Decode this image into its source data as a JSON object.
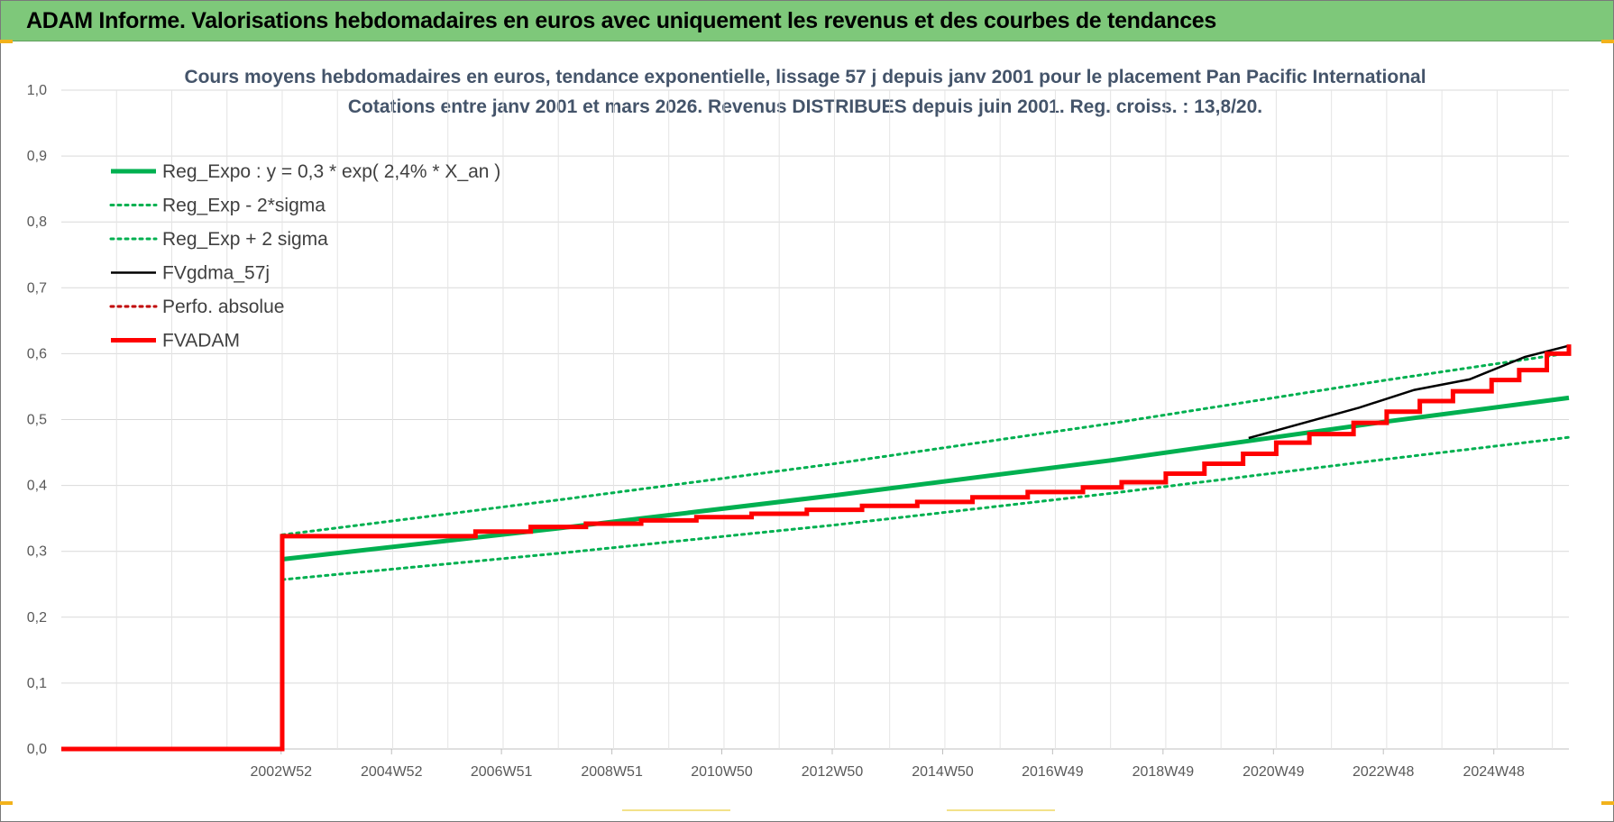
{
  "banner": {
    "title": "ADAM Informe. Valorisations hebdomadaires en euros avec uniquement les revenus et des courbes de tendances"
  },
  "colors": {
    "banner_bg": "#7ec87a",
    "reg_expo": "#00b050",
    "fvgdma": "#000000",
    "fvadam": "#ff0000",
    "perfo": "#c00000"
  },
  "chart_data": {
    "type": "line",
    "title_lines": [
      "Cours moyens hebdomadaires en euros, tendance exponentielle, lissage 57 j depuis janv 2001  pour le placement Pan Pacific International",
      "Cotations entre janv 2001 et mars 2026. Revenus DISTRIBUES depuis juin 2001. Reg. croiss. : 13,8/20."
    ],
    "ylim": [
      0,
      1.0
    ],
    "xlim": [
      1999,
      2026.3
    ],
    "grid": true,
    "legend_position": "top-left",
    "y_tick_labels": [
      "0,0",
      "0,1",
      "0,2",
      "0,3",
      "0,4",
      "0,5",
      "0,6",
      "0,7",
      "0,8",
      "0,9",
      "1,0"
    ],
    "x_tick_labels": [
      "2002W52",
      "2004W52",
      "2006W51",
      "2008W51",
      "2010W50",
      "2012W50",
      "2014W50",
      "2016W49",
      "2018W49",
      "2020W49",
      "2022W48",
      "2024W48"
    ],
    "x_tick_positions": [
      2002.98,
      2004.98,
      2006.97,
      2008.97,
      2010.96,
      2012.96,
      2014.96,
      2016.95,
      2018.95,
      2020.95,
      2022.94,
      2024.94
    ],
    "series": [
      {
        "name": "Reg_Expo : y = 0,3 * exp( 2,4% *  X_an )",
        "style": "solid-thick",
        "color": "#00b050",
        "x": [
          2003.0,
          2008.0,
          2013.0,
          2018.0,
          2023.0,
          2026.3
        ],
        "y": [
          0.288,
          0.335,
          0.385,
          0.438,
          0.497,
          0.533
        ]
      },
      {
        "name": "Reg_Exp - 2*sigma",
        "style": "dotted",
        "color": "#00b050",
        "x": [
          2003.0,
          2008.0,
          2013.0,
          2018.0,
          2023.0,
          2026.3
        ],
        "y": [
          0.257,
          0.297,
          0.34,
          0.388,
          0.44,
          0.473
        ]
      },
      {
        "name": "Reg_Exp + 2 sigma",
        "style": "dotted",
        "color": "#00b050",
        "x": [
          2003.0,
          2008.0,
          2013.0,
          2018.0,
          2023.0,
          2026.3
        ],
        "y": [
          0.325,
          0.378,
          0.433,
          0.494,
          0.56,
          0.601
        ]
      },
      {
        "name": "FVgdma_57j",
        "style": "solid",
        "color": "#000000",
        "x": [
          2020.5,
          2021.5,
          2022.5,
          2023.5,
          2024.5,
          2025.5,
          2026.3
        ],
        "y": [
          0.472,
          0.495,
          0.518,
          0.545,
          0.561,
          0.595,
          0.612
        ]
      },
      {
        "name": "Perfo. absolue",
        "style": "dotted",
        "color": "#c00000",
        "x": [],
        "y": []
      },
      {
        "name": "FVADAM",
        "style": "solid-thick",
        "color": "#ff0000",
        "x": [
          1999.0,
          2003.0,
          2003.0,
          2005.5,
          2006.5,
          2007.5,
          2008.5,
          2009.5,
          2010.5,
          2011.5,
          2012.5,
          2013.5,
          2014.5,
          2015.5,
          2016.5,
          2017.5,
          2018.2,
          2019.0,
          2019.7,
          2020.4,
          2021.0,
          2021.6,
          2022.4,
          2023.0,
          2023.6,
          2024.2,
          2024.9,
          2025.4,
          2025.9,
          2026.3
        ],
        "y": [
          0.0,
          0.0,
          0.323,
          0.323,
          0.33,
          0.337,
          0.342,
          0.347,
          0.352,
          0.357,
          0.363,
          0.369,
          0.375,
          0.382,
          0.39,
          0.397,
          0.405,
          0.418,
          0.433,
          0.448,
          0.465,
          0.478,
          0.495,
          0.512,
          0.528,
          0.543,
          0.56,
          0.575,
          0.6,
          0.614
        ]
      }
    ]
  }
}
